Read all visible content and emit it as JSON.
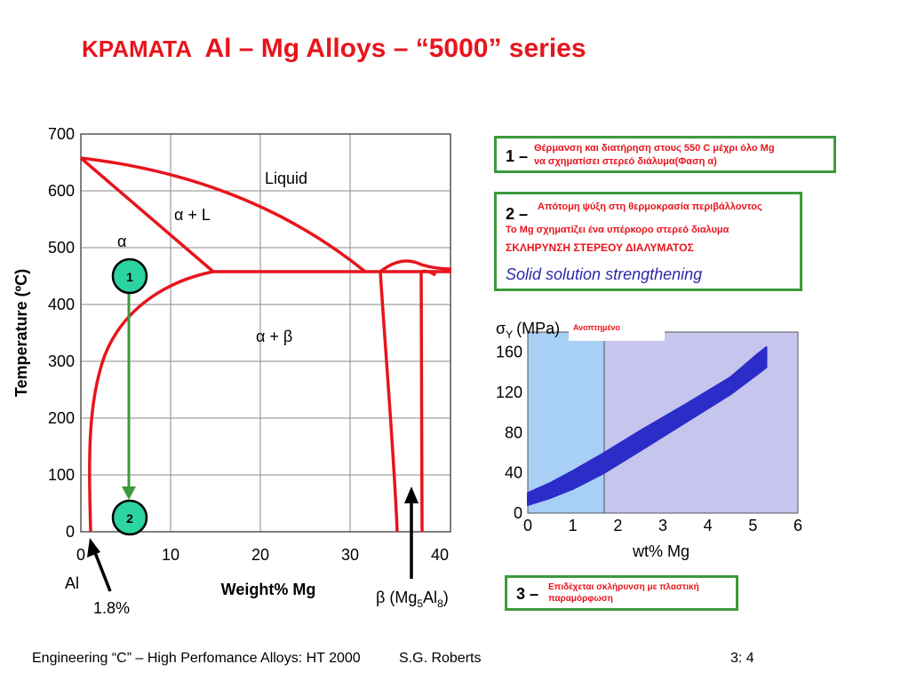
{
  "slide": {
    "title_greek": "ΚΡΑΜΑΤΑ",
    "title_main": "Al – Mg Alloys – “5000” series",
    "footer_left": "Engineering “C” – High Perfomance Alloys: HT 2000",
    "footer_author": "S.G. Roberts",
    "footer_page": "3: 4"
  },
  "phase_diagram": {
    "ylabel": "Temperature (ºC)",
    "xlabel": "Weight% Mg",
    "y_ticks": [
      "700",
      "600",
      "500",
      "400",
      "300",
      "200",
      "100",
      "0"
    ],
    "x_ticks": [
      "0",
      "10",
      "20",
      "30",
      "40"
    ],
    "region_liquid": "Liquid",
    "region_alpha_L": "α + L",
    "region_alpha": "α",
    "region_alpha_beta": "α + β",
    "marker_1": "1",
    "marker_2": "2",
    "label_al": "Al",
    "label_composition": "1.8%",
    "label_beta_prefix": "β (Mg",
    "label_beta_sub1": "5",
    "label_beta_mid": "Al",
    "label_beta_sub2": "8",
    "label_beta_suffix": ")"
  },
  "step1": {
    "number": "1 –",
    "line1": "Θέρμανση και διατήρηση   στους 550 C μέχρι όλο Mg",
    "line2": "να σχηματίσει στερεό διάλυμα(Φαση α)"
  },
  "step2": {
    "number": "2 –",
    "line1": "Απότομη ψύξη στη θερμοκρασία περιβάλλοντος",
    "line2": "Το Mg σχηματίζει ένα υπέρκορο στερεό διαλυμα",
    "line3": "ΣΚΛΗΡΥΝΣΗ ΣΤΕΡΕΟΥ ΔΙΑΛΥΜΑΤΟΣ",
    "line4": "Solid solution strengthening",
    "color_blue": "#2a2aa8"
  },
  "step3": {
    "number": "3 –",
    "line1": "Επιδέχεται σκλήρυνση με πλαστική",
    "line2": "παραμόρφωση"
  },
  "chart_data": {
    "type": "area",
    "ylabel_symbol": "σ",
    "ylabel_sub": "Y",
    "ylabel_unit": "(MPa)",
    "annotation": "Ανοπτημένο",
    "xlabel": "wt% Mg",
    "x_ticks": [
      "0",
      "1",
      "2",
      "3",
      "4",
      "5",
      "6"
    ],
    "y_ticks": [
      "160",
      "120",
      "80",
      "40",
      "0"
    ],
    "xlim": [
      0,
      6
    ],
    "ylim": [
      0,
      180
    ],
    "shaded_region_x": [
      0,
      1.7
    ],
    "band_upper": [
      [
        0,
        20
      ],
      [
        0.5,
        30
      ],
      [
        1,
        42
      ],
      [
        1.7,
        60
      ],
      [
        2.5,
        82
      ],
      [
        3.5,
        108
      ],
      [
        4.5,
        135
      ],
      [
        5.1,
        158
      ],
      [
        5.3,
        165
      ]
    ],
    "band_lower": [
      [
        0,
        8
      ],
      [
        0.5,
        15
      ],
      [
        1,
        24
      ],
      [
        1.7,
        40
      ],
      [
        2.5,
        62
      ],
      [
        3.5,
        90
      ],
      [
        4.5,
        118
      ],
      [
        5.1,
        138
      ],
      [
        5.3,
        145
      ]
    ],
    "band_color": "#2c2cc8",
    "bg_left": "#a8cff5",
    "bg_right": "#c5c5ee"
  }
}
